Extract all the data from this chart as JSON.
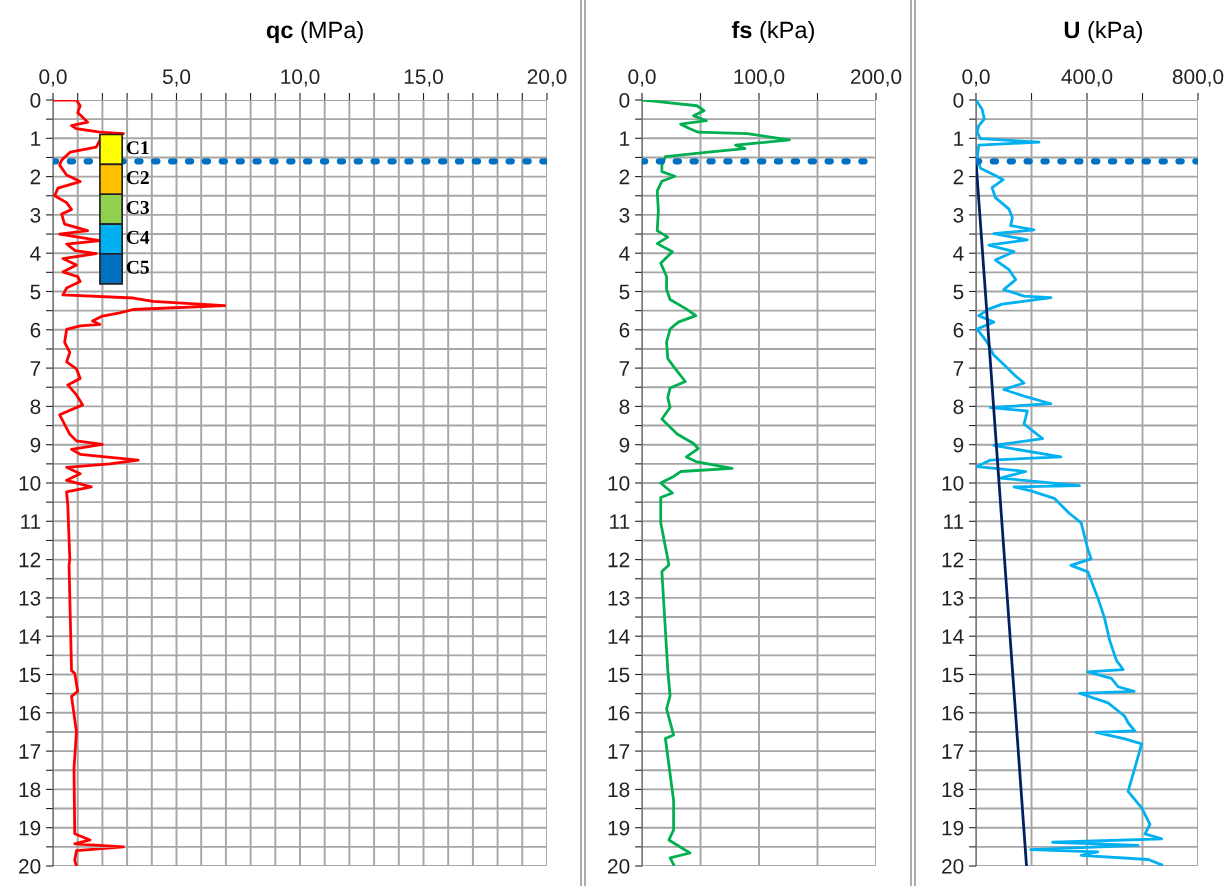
{
  "chart_data": [
    {
      "type": "line",
      "title": "qc (MPa)",
      "orientation": "horizontal",
      "grid": true,
      "xlim": [
        0,
        20
      ],
      "xticks": [
        {
          "value": 0,
          "label": "0,0"
        },
        {
          "value": 1,
          "label": null
        },
        {
          "value": 2,
          "label": null
        },
        {
          "value": 3,
          "label": null
        },
        {
          "value": 4,
          "label": null
        },
        {
          "value": 5,
          "label": "5,0"
        },
        {
          "value": 6,
          "label": null
        },
        {
          "value": 7,
          "label": null
        },
        {
          "value": 8,
          "label": null
        },
        {
          "value": 9,
          "label": null
        },
        {
          "value": 10,
          "label": "10,0"
        },
        {
          "value": 11,
          "label": null
        },
        {
          "value": 12,
          "label": null
        },
        {
          "value": 13,
          "label": null
        },
        {
          "value": 14,
          "label": null
        },
        {
          "value": 15,
          "label": "15,0"
        },
        {
          "value": 16,
          "label": null
        },
        {
          "value": 17,
          "label": null
        },
        {
          "value": 18,
          "label": null
        },
        {
          "value": 19,
          "label": null
        },
        {
          "value": 20,
          "label": "20,0"
        }
      ],
      "ylim": [
        20,
        0
      ],
      "yticks": [
        0,
        {
          "value": 0.5,
          "label": null
        },
        1,
        {
          "value": 1.5,
          "label": null
        },
        2,
        {
          "value": 2.5,
          "label": null
        },
        3,
        {
          "value": 3.5,
          "label": null
        },
        4,
        {
          "value": 4.5,
          "label": null
        },
        5,
        {
          "value": 5.5,
          "label": null
        },
        6,
        {
          "value": 6.5,
          "label": null
        },
        7,
        {
          "value": 7.5,
          "label": null
        },
        8,
        {
          "value": 8.5,
          "label": null
        },
        9,
        {
          "value": 9.5,
          "label": null
        },
        10,
        {
          "value": 10.5,
          "label": null
        },
        11,
        {
          "value": 11.5,
          "label": null
        },
        12,
        {
          "value": 12.5,
          "label": null
        },
        13,
        {
          "value": 13.5,
          "label": null
        },
        14,
        {
          "value": 14.5,
          "label": null
        },
        15,
        {
          "value": 15.5,
          "label": null
        },
        16,
        {
          "value": 16.5,
          "label": null
        },
        17,
        {
          "value": 17.5,
          "label": null
        },
        18,
        {
          "value": 18.5,
          "label": null
        },
        19,
        {
          "value": 19.5,
          "label": null
        },
        20
      ],
      "ref_lines": [
        {
          "axis": "y",
          "value": 1.6,
          "color": "#0070c0",
          "line_style": "dotted"
        }
      ],
      "annotations": [
        "C1",
        "C2",
        "C3",
        "C4",
        "C5"
      ],
      "series": [
        {
          "color": "#ff0000",
          "x": [
            0,
            0,
            0.15,
            0.33,
            0.45,
            0.58,
            0.67,
            0.75,
            0.84,
            0.88,
            1.05,
            1.23,
            1.36,
            1.57,
            1.7,
            1.96,
            2.13,
            2.3,
            2.5,
            2.68,
            2.86,
            2.98,
            3.24,
            3.41,
            3.5,
            3.67,
            3.76,
            3.93,
            4.01,
            4.14,
            4.31,
            4.49,
            4.61,
            4.74,
            4.91,
            5.09,
            5.17,
            5.26,
            5.37,
            5.47,
            5.56,
            5.64,
            5.77,
            5.86,
            5.9,
            5.99,
            6.33,
            6.59,
            6.84,
            7.02,
            7.27,
            7.44,
            7.7,
            7.96,
            8.22,
            8.47,
            8.73,
            8.9,
            8.99,
            9.12,
            9.25,
            9.4,
            9.5,
            9.59,
            9.76,
            9.93,
            10.1,
            10.23,
            10.6,
            11.98,
            12.15,
            14.9,
            14.97,
            15.44,
            15.57,
            16.5,
            17.45,
            19.16,
            19.32,
            19.42,
            19.5,
            19.6,
            19.85,
            20
          ],
          "values": [
            0,
            0.95,
            1.1,
            1.0,
            1.2,
            1.4,
            0.75,
            0.95,
            1.9,
            2.85,
            1.9,
            1.75,
            0.7,
            0.35,
            0.27,
            0.55,
            1.1,
            0.2,
            0.07,
            0.55,
            0.75,
            0.35,
            0.47,
            1.4,
            0.27,
            1.9,
            0.55,
            0.9,
            1.75,
            0.4,
            0.95,
            0.4,
            1.0,
            1.1,
            0.55,
            0.4,
            3.25,
            4.05,
            6.95,
            3.25,
            2.7,
            2.0,
            1.6,
            1.9,
            1.1,
            0.55,
            0.47,
            0.68,
            0.55,
            0.95,
            1.1,
            0.6,
            0.95,
            1.2,
            0.27,
            0.47,
            0.68,
            0.95,
            2.0,
            0.75,
            1.1,
            3.45,
            2.3,
            0.55,
            1.1,
            0.55,
            1.55,
            0.55,
            0.6,
            0.68,
            0.65,
            0.75,
            0.88,
            1.0,
            0.75,
            0.95,
            0.85,
            0.88,
            1.5,
            0.88,
            2.85,
            0.95,
            0.88,
            0.95
          ]
        }
      ]
    },
    {
      "type": "line",
      "title": "fs (kPa)",
      "orientation": "horizontal",
      "grid": true,
      "xlim": [
        0,
        200
      ],
      "xticks": [
        {
          "value": 0,
          "label": "0,0"
        },
        {
          "value": 50,
          "label": null
        },
        {
          "value": 100,
          "label": "100,0"
        },
        {
          "value": 150,
          "label": null
        },
        {
          "value": 200,
          "label": "200,0"
        }
      ],
      "ylim": [
        20,
        0
      ],
      "yticks": [
        0,
        {
          "value": 0.5,
          "label": null
        },
        1,
        {
          "value": 1.5,
          "label": null
        },
        2,
        {
          "value": 2.5,
          "label": null
        },
        3,
        {
          "value": 3.5,
          "label": null
        },
        4,
        {
          "value": 4.5,
          "label": null
        },
        5,
        {
          "value": 5.5,
          "label": null
        },
        6,
        {
          "value": 6.5,
          "label": null
        },
        7,
        {
          "value": 7.5,
          "label": null
        },
        8,
        {
          "value": 8.5,
          "label": null
        },
        9,
        {
          "value": 9.5,
          "label": null
        },
        10,
        {
          "value": 10.5,
          "label": null
        },
        11,
        {
          "value": 11.5,
          "label": null
        },
        12,
        {
          "value": 12.5,
          "label": null
        },
        13,
        {
          "value": 13.5,
          "label": null
        },
        14,
        {
          "value": 14.5,
          "label": null
        },
        15,
        {
          "value": 15.5,
          "label": null
        },
        16,
        {
          "value": 16.5,
          "label": null
        },
        17,
        {
          "value": 17.5,
          "label": null
        },
        18,
        {
          "value": 18.5,
          "label": null
        },
        19,
        {
          "value": 19.5,
          "label": null
        },
        20
      ],
      "ref_lines": [
        {
          "axis": "y",
          "value": 1.6,
          "color": "#0070c0",
          "line_style": "dotted"
        }
      ],
      "series": [
        {
          "color": "#00b050",
          "x": [
            0,
            0.03,
            0.15,
            0.28,
            0.41,
            0.54,
            0.63,
            0.75,
            0.84,
            0.88,
            1.04,
            1.18,
            1.27,
            1.35,
            1.48,
            1.7,
            1.87,
            1.99,
            2.12,
            2.38,
            2.89,
            3.41,
            3.58,
            3.75,
            3.96,
            4.26,
            4.61,
            4.95,
            5.21,
            5.46,
            5.63,
            5.8,
            5.98,
            6.32,
            6.75,
            7.0,
            7.35,
            7.52,
            7.77,
            8.03,
            8.33,
            8.72,
            8.97,
            9.1,
            9.32,
            9.44,
            9.62,
            9.7,
            9.83,
            10.0,
            10.26,
            10.38,
            11.03,
            12.14,
            12.31,
            14.87,
            15.56,
            15.9,
            16.58,
            16.67,
            18.29,
            19.06,
            19.32,
            19.66,
            19.79,
            19.96
          ],
          "values": [
            0,
            10,
            47,
            53,
            44,
            55,
            33,
            41,
            48,
            90,
            126,
            80,
            88,
            61,
            20,
            17,
            17,
            28,
            17,
            13,
            14,
            13,
            22,
            13,
            26,
            16,
            21,
            21,
            24,
            38,
            46,
            31,
            24,
            21,
            22,
            28,
            37,
            24,
            22,
            24,
            17,
            30,
            44,
            48,
            38,
            46,
            77,
            33,
            27,
            16,
            26,
            16,
            16,
            23,
            17,
            22,
            24,
            21,
            27,
            20,
            27,
            27,
            23,
            41,
            24,
            27
          ]
        }
      ]
    },
    {
      "type": "line",
      "title": "U (kPa)",
      "orientation": "horizontal",
      "grid": true,
      "xlim": [
        0,
        800
      ],
      "xticks": [
        {
          "value": 0,
          "label": "0,0"
        },
        {
          "value": 200,
          "label": null
        },
        {
          "value": 400,
          "label": "400,0"
        },
        {
          "value": 600,
          "label": null
        },
        {
          "value": 800,
          "label": "800,0"
        }
      ],
      "ylim": [
        20,
        0
      ],
      "yticks": [
        0,
        {
          "value": 0.5,
          "label": null
        },
        1,
        {
          "value": 1.5,
          "label": null
        },
        2,
        {
          "value": 2.5,
          "label": null
        },
        3,
        {
          "value": 3.5,
          "label": null
        },
        4,
        {
          "value": 4.5,
          "label": null
        },
        5,
        {
          "value": 5.5,
          "label": null
        },
        6,
        {
          "value": 6.5,
          "label": null
        },
        7,
        {
          "value": 7.5,
          "label": null
        },
        8,
        {
          "value": 8.5,
          "label": null
        },
        9,
        {
          "value": 9.5,
          "label": null
        },
        10,
        {
          "value": 10.5,
          "label": null
        },
        11,
        {
          "value": 11.5,
          "label": null
        },
        12,
        {
          "value": 12.5,
          "label": null
        },
        13,
        {
          "value": 13.5,
          "label": null
        },
        14,
        {
          "value": 14.5,
          "label": null
        },
        15,
        {
          "value": 15.5,
          "label": null
        },
        16,
        {
          "value": 16.5,
          "label": null
        },
        17,
        {
          "value": 17.5,
          "label": null
        },
        18,
        {
          "value": 18.5,
          "label": null
        },
        19,
        {
          "value": 19.5,
          "label": null
        },
        20
      ],
      "ref_lines": [
        {
          "axis": "y",
          "value": 1.6,
          "color": "#0070c0",
          "line_style": "dotted"
        }
      ],
      "series": [
        {
          "color": "#00b0f0",
          "x": [
            0,
            0.24,
            0.5,
            0.67,
            0.84,
            1.01,
            1.1,
            1.18,
            1.52,
            1.78,
            1.95,
            2.08,
            2.29,
            2.55,
            2.85,
            3.07,
            3.28,
            3.39,
            3.49,
            3.65,
            3.79,
            3.96,
            4.18,
            4.43,
            4.69,
            4.95,
            5.12,
            5.16,
            5.33,
            5.46,
            5.63,
            5.8,
            5.98,
            6.32,
            6.66,
            7.0,
            7.17,
            7.39,
            7.56,
            7.73,
            7.93,
            8.03,
            8.12,
            8.46,
            8.84,
            9.02,
            9.32,
            9.4,
            9.57,
            9.7,
            9.87,
            10.07,
            10.1,
            10.19,
            10.4,
            10.79,
            11.04,
            11.73,
            11.98,
            12.15,
            12.32,
            13.0,
            13.52,
            14.12,
            14.63,
            14.87,
            14.93,
            15.1,
            15.32,
            15.44,
            15.49,
            15.74,
            16.09,
            16.26,
            16.47,
            16.51,
            16.68,
            16.81,
            17.45,
            18.05,
            18.48,
            18.91,
            19.16,
            19.29,
            19.38,
            19.46,
            19.57,
            19.63,
            19.72,
            19.83,
            19.97
          ],
          "values": [
            0,
            22,
            30,
            10,
            4,
            16,
            227,
            10,
            4,
            16,
            64,
            98,
            58,
            70,
            119,
            131,
            125,
            209,
            64,
            185,
            46,
            137,
            70,
            119,
            143,
            100,
            173,
            270,
            94,
            46,
            10,
            64,
            4,
            40,
            64,
            113,
            137,
            173,
            100,
            173,
            270,
            52,
            185,
            173,
            240,
            64,
            306,
            52,
            4,
            179,
            88,
            373,
            137,
            191,
            282,
            336,
            379,
            403,
            415,
            342,
            403,
            439,
            463,
            482,
            506,
            530,
            403,
            488,
            512,
            570,
            373,
            476,
            536,
            548,
            572,
            433,
            536,
            597,
            572,
            548,
            597,
            627,
            609,
            669,
            276,
            584,
            197,
            439,
            379,
            621,
            669
          ]
        },
        {
          "color": "#002060",
          "x": [
            1.6,
            20
          ],
          "values": [
            0,
            182
          ]
        }
      ]
    }
  ]
}
